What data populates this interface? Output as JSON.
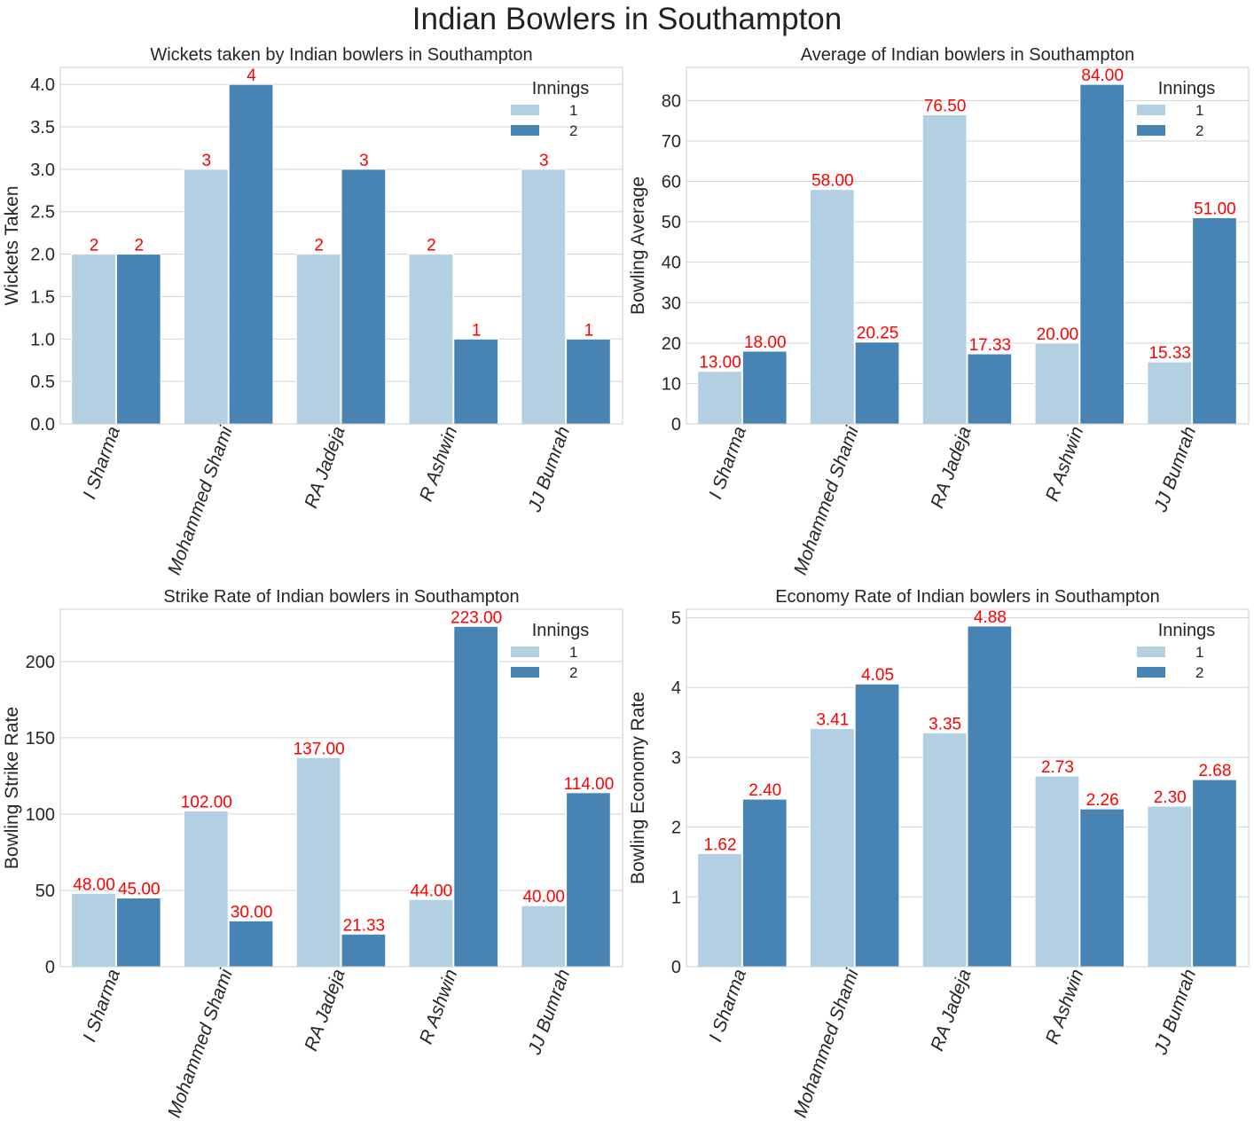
{
  "figure": {
    "title": "Indian Bowlers in Southampton",
    "colors": {
      "innings_1": "#b3cfe2",
      "innings_2": "#4884b3",
      "bar_label": "#ff0000",
      "grid": "#d3d3d3",
      "frame": "#cfcfcf"
    }
  },
  "chart_data": [
    {
      "type": "bar",
      "title": "Wickets taken by Indian bowlers in Southampton",
      "xlabel": "",
      "ylabel": "Wickets Taken",
      "categories": [
        "I Sharma",
        "Mohammed Shami",
        "RA Jadeja",
        "R Ashwin",
        "JJ Bumrah"
      ],
      "series": [
        {
          "name": "1",
          "values": [
            2,
            3,
            2,
            2,
            3
          ]
        },
        {
          "name": "2",
          "values": [
            2,
            4,
            3,
            1,
            1
          ]
        }
      ],
      "labels": [
        [
          "2",
          "3",
          "2",
          "2",
          "3"
        ],
        [
          "2",
          "4",
          "3",
          "1",
          "1"
        ]
      ],
      "ylim": [
        0,
        4.2
      ],
      "yticks": [
        0,
        0.5,
        1.0,
        1.5,
        2.0,
        2.5,
        3.0,
        3.5,
        4.0
      ],
      "ytick_labels": [
        "0.0",
        "0.5",
        "1.0",
        "1.5",
        "2.0",
        "2.5",
        "3.0",
        "3.5",
        "4.0"
      ],
      "legend": {
        "title": "Innings",
        "placement": "top-right"
      },
      "grid": true
    },
    {
      "type": "bar",
      "title": "Average of Indian bowlers in Southampton",
      "xlabel": "",
      "ylabel": "Bowling Average",
      "categories": [
        "I Sharma",
        "Mohammed Shami",
        "RA Jadeja",
        "R Ashwin",
        "JJ Bumrah"
      ],
      "series": [
        {
          "name": "1",
          "values": [
            13.0,
            58.0,
            76.5,
            20.0,
            15.33
          ]
        },
        {
          "name": "2",
          "values": [
            18.0,
            20.25,
            17.33,
            84.0,
            51.0
          ]
        }
      ],
      "labels": [
        [
          "13.00",
          "58.00",
          "76.50",
          "20.00",
          "15.33"
        ],
        [
          "18.00",
          "20.25",
          "17.33",
          "84.00",
          "51.00"
        ]
      ],
      "ylim": [
        0,
        88.2
      ],
      "yticks": [
        0,
        10,
        20,
        30,
        40,
        50,
        60,
        70,
        80
      ],
      "ytick_labels": [
        "0",
        "10",
        "20",
        "30",
        "40",
        "50",
        "60",
        "70",
        "80"
      ],
      "legend": {
        "title": "Innings",
        "placement": "top-right"
      },
      "grid": true
    },
    {
      "type": "bar",
      "title": "Strike Rate of Indian bowlers in Southampton",
      "xlabel": "",
      "ylabel": "Bowling Strike Rate",
      "categories": [
        "I Sharma",
        "Mohammed Shami",
        "RA Jadeja",
        "R Ashwin",
        "JJ Bumrah"
      ],
      "series": [
        {
          "name": "1",
          "values": [
            48.0,
            102.0,
            137.0,
            44.0,
            40.0
          ]
        },
        {
          "name": "2",
          "values": [
            45.0,
            30.0,
            21.33,
            223.0,
            114.0
          ]
        }
      ],
      "labels": [
        [
          "48.00",
          "102.00",
          "137.00",
          "44.00",
          "40.00"
        ],
        [
          "45.00",
          "30.00",
          "21.33",
          "223.00",
          "114.00"
        ]
      ],
      "ylim": [
        0,
        234.2
      ],
      "yticks": [
        0,
        50,
        100,
        150,
        200
      ],
      "ytick_labels": [
        "0",
        "50",
        "100",
        "150",
        "200"
      ],
      "legend": {
        "title": "Innings",
        "placement": "top-right"
      },
      "grid": true
    },
    {
      "type": "bar",
      "title": "Economy Rate of Indian bowlers in Southampton",
      "xlabel": "",
      "ylabel": "Bowling Economy Rate",
      "categories": [
        "I Sharma",
        "Mohammed Shami",
        "RA Jadeja",
        "R Ashwin",
        "JJ Bumrah"
      ],
      "series": [
        {
          "name": "1",
          "values": [
            1.62,
            3.41,
            3.35,
            2.73,
            2.3
          ]
        },
        {
          "name": "2",
          "values": [
            2.4,
            4.05,
            4.88,
            2.26,
            2.68
          ]
        }
      ],
      "labels": [
        [
          "1.62",
          "3.41",
          "3.35",
          "2.73",
          "2.30"
        ],
        [
          "2.40",
          "4.05",
          "4.88",
          "2.26",
          "2.68"
        ]
      ],
      "ylim": [
        0,
        5.12
      ],
      "yticks": [
        0,
        1,
        2,
        3,
        4,
        5
      ],
      "ytick_labels": [
        "0",
        "1",
        "2",
        "3",
        "4",
        "5"
      ],
      "legend": {
        "title": "Innings",
        "placement": "top-right"
      },
      "grid": true
    }
  ]
}
